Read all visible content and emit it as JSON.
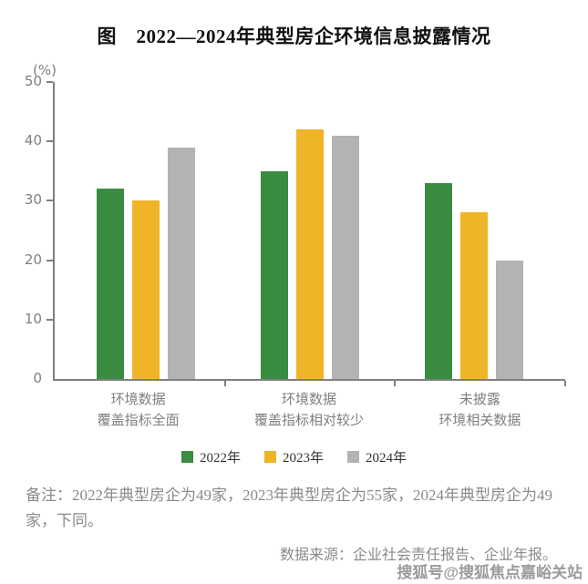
{
  "title": "图　2022—2024年典型房企环境信息披露情况",
  "chart_data": {
    "type": "bar",
    "unit_label": "(%)",
    "categories": [
      "环境数据\n覆盖指标全面",
      "环境数据\n覆盖指标相对较少",
      "未披露\n环境相关数据"
    ],
    "series": [
      {
        "name": "2022年",
        "color": "#3a8c41",
        "values": [
          32,
          35,
          33
        ]
      },
      {
        "name": "2023年",
        "color": "#f0b429",
        "values": [
          30,
          42,
          28
        ]
      },
      {
        "name": "2024年",
        "color": "#b3b3b3",
        "values": [
          39,
          41,
          20
        ]
      }
    ],
    "ylim": [
      0,
      50
    ],
    "yticks": [
      0,
      10,
      20,
      30,
      40,
      50
    ],
    "grid": false,
    "legend_position": "bottom",
    "axis_color": "#808080"
  },
  "note": "备注：2022年典型房企为49家，2023年典型房企为55家，2024年典型房企为49家，下同。",
  "source": "数据来源：企业社会责任报告、企业年报。",
  "watermark": "搜狐号@搜狐焦点嘉峪关站"
}
